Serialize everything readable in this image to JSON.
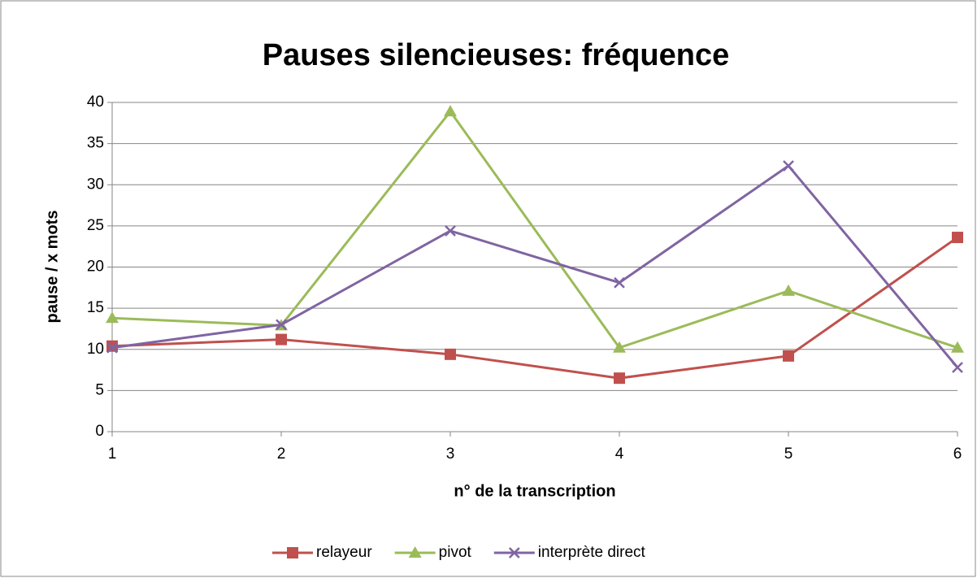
{
  "chart_data": {
    "type": "line",
    "title": "Pauses silencieuses: fréquence",
    "x_label": "n° de la transcription",
    "y_label": "pause / x mots",
    "x": [
      1,
      2,
      3,
      4,
      5,
      6
    ],
    "xlim": [
      1,
      6
    ],
    "xticks": [
      1,
      2,
      3,
      4,
      5,
      6
    ],
    "ylim": [
      0,
      40
    ],
    "yticks": [
      0,
      5,
      10,
      15,
      20,
      25,
      30,
      35,
      40
    ],
    "grid": true,
    "legend": "bottom",
    "series": [
      {
        "name": "relayeur",
        "color": "#c0504d",
        "marker": "square",
        "values": [
          10.4,
          11.2,
          9.4,
          6.5,
          9.2,
          23.6
        ]
      },
      {
        "name": "pivot",
        "color": "#9bbb59",
        "marker": "triangle",
        "values": [
          13.8,
          12.9,
          38.9,
          10.2,
          17.1,
          10.2
        ]
      },
      {
        "name": "interprète direct",
        "color": "#8064a2",
        "marker": "x",
        "values": [
          10.2,
          13.0,
          24.4,
          18.1,
          32.3,
          7.8
        ]
      }
    ]
  }
}
